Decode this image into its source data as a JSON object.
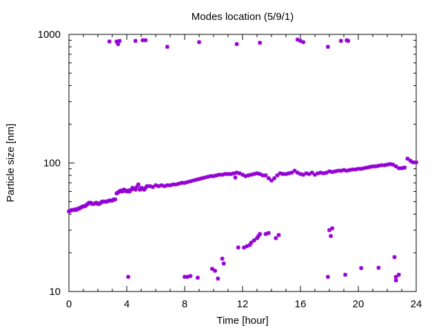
{
  "chart_data": {
    "type": "scatter",
    "title": "Modes location (5/9/1)",
    "xlabel": "Time [hour]",
    "ylabel": "Particle size [nm]",
    "xlim": [
      0,
      24
    ],
    "ylim": [
      10,
      1000
    ],
    "y_scale": "log",
    "grid": false,
    "legend": "none",
    "x_ticks": [
      0,
      4,
      8,
      12,
      16,
      20,
      24
    ],
    "x_tick_labels": [
      "0",
      "4",
      "8",
      "12",
      "16",
      "20",
      "24"
    ],
    "y_ticks": [
      10,
      100,
      1000
    ],
    "y_tick_labels": [
      "10",
      "100",
      "1000"
    ],
    "marker_color": "#9400d3",
    "series": [
      {
        "values": [
          [
            0.0,
            42
          ],
          [
            0.1,
            42.5
          ],
          [
            0.2,
            43
          ],
          [
            0.3,
            43
          ],
          [
            0.4,
            43.5
          ],
          [
            0.5,
            43
          ],
          [
            0.6,
            44
          ],
          [
            0.7,
            44
          ],
          [
            0.8,
            45
          ],
          [
            0.9,
            45.5
          ],
          [
            1.0,
            46
          ],
          [
            1.1,
            46
          ],
          [
            1.2,
            47
          ],
          [
            1.3,
            48
          ],
          [
            1.4,
            49
          ],
          [
            1.5,
            49
          ],
          [
            1.6,
            48
          ],
          [
            1.7,
            48
          ],
          [
            1.8,
            48.5
          ],
          [
            1.9,
            49
          ],
          [
            2.0,
            48
          ],
          [
            2.1,
            48
          ],
          [
            2.2,
            49
          ],
          [
            2.3,
            50
          ],
          [
            2.4,
            50
          ],
          [
            2.5,
            50
          ],
          [
            2.6,
            50
          ],
          [
            2.7,
            50.5
          ],
          [
            2.8,
            51
          ],
          [
            2.9,
            51
          ],
          [
            3.0,
            51
          ],
          [
            3.1,
            52
          ],
          [
            3.2,
            52
          ],
          [
            3.3,
            58
          ],
          [
            3.4,
            59
          ],
          [
            3.5,
            60
          ],
          [
            3.6,
            61
          ],
          [
            3.7,
            60
          ],
          [
            3.8,
            62
          ],
          [
            3.9,
            61
          ],
          [
            4.0,
            60
          ],
          [
            4.1,
            61
          ],
          [
            4.2,
            60
          ],
          [
            4.3,
            62
          ],
          [
            4.4,
            64
          ],
          [
            4.5,
            63
          ],
          [
            4.6,
            62
          ],
          [
            4.7,
            65
          ],
          [
            4.8,
            68
          ],
          [
            4.9,
            62
          ],
          [
            5.0,
            64
          ],
          [
            5.1,
            63
          ],
          [
            5.2,
            62
          ],
          [
            5.3,
            64
          ],
          [
            5.4,
            66
          ],
          [
            5.6,
            66
          ],
          [
            5.8,
            65
          ],
          [
            6.0,
            67
          ],
          [
            6.2,
            66
          ],
          [
            6.4,
            67
          ],
          [
            6.6,
            66
          ],
          [
            6.8,
            67
          ],
          [
            7.0,
            67
          ],
          [
            7.2,
            68
          ],
          [
            7.4,
            68
          ],
          [
            7.6,
            69
          ],
          [
            7.8,
            70
          ],
          [
            8.0,
            70
          ],
          [
            8.2,
            71
          ],
          [
            8.4,
            72
          ],
          [
            8.6,
            73
          ],
          [
            8.8,
            74
          ],
          [
            9.0,
            75
          ],
          [
            9.2,
            76
          ],
          [
            9.4,
            77
          ],
          [
            9.6,
            78
          ],
          [
            9.8,
            79
          ],
          [
            10.0,
            79
          ],
          [
            10.2,
            80
          ],
          [
            10.4,
            81
          ],
          [
            10.6,
            81
          ],
          [
            10.8,
            82
          ],
          [
            11.0,
            82
          ],
          [
            11.2,
            82
          ],
          [
            11.4,
            83
          ],
          [
            11.5,
            77
          ],
          [
            11.6,
            84
          ],
          [
            11.8,
            83
          ],
          [
            12.0,
            81
          ],
          [
            12.2,
            79
          ],
          [
            12.4,
            80
          ],
          [
            12.6,
            81
          ],
          [
            12.8,
            82
          ],
          [
            13.0,
            83
          ],
          [
            13.2,
            82
          ],
          [
            13.4,
            80
          ],
          [
            13.6,
            80
          ],
          [
            13.8,
            76
          ],
          [
            14.0,
            73
          ],
          [
            14.2,
            76
          ],
          [
            14.4,
            80
          ],
          [
            14.6,
            83
          ],
          [
            14.8,
            82
          ],
          [
            15.0,
            82
          ],
          [
            15.2,
            83
          ],
          [
            15.4,
            84
          ],
          [
            15.6,
            87
          ],
          [
            15.8,
            84
          ],
          [
            16.0,
            82
          ],
          [
            16.2,
            81
          ],
          [
            16.4,
            83
          ],
          [
            16.6,
            82
          ],
          [
            16.8,
            84
          ],
          [
            17.0,
            81
          ],
          [
            17.2,
            83
          ],
          [
            17.4,
            84
          ],
          [
            17.6,
            83
          ],
          [
            17.8,
            84
          ],
          [
            18.0,
            86
          ],
          [
            18.2,
            85
          ],
          [
            18.4,
            86
          ],
          [
            18.6,
            87
          ],
          [
            18.8,
            87
          ],
          [
            19.0,
            88
          ],
          [
            19.2,
            87
          ],
          [
            19.4,
            88
          ],
          [
            19.6,
            89
          ],
          [
            19.8,
            89
          ],
          [
            20.0,
            90
          ],
          [
            20.2,
            90
          ],
          [
            20.4,
            91
          ],
          [
            20.6,
            92
          ],
          [
            20.8,
            93
          ],
          [
            21.0,
            94
          ],
          [
            21.2,
            94
          ],
          [
            21.4,
            95
          ],
          [
            21.6,
            96
          ],
          [
            21.8,
            96
          ],
          [
            22.0,
            97
          ],
          [
            22.2,
            98
          ],
          [
            22.4,
            97
          ],
          [
            22.6,
            94
          ],
          [
            22.8,
            91
          ],
          [
            23.0,
            91
          ],
          [
            23.2,
            92
          ],
          [
            23.4,
            108
          ],
          [
            23.6,
            104
          ],
          [
            23.8,
            101
          ],
          [
            24.0,
            101
          ],
          [
            2.8,
            880
          ],
          [
            3.3,
            880
          ],
          [
            3.4,
            840
          ],
          [
            3.5,
            890
          ],
          [
            4.6,
            890
          ],
          [
            5.1,
            900
          ],
          [
            5.3,
            900
          ],
          [
            6.8,
            800
          ],
          [
            9.0,
            870
          ],
          [
            11.6,
            840
          ],
          [
            13.2,
            860
          ],
          [
            15.8,
            910
          ],
          [
            16.0,
            890
          ],
          [
            16.2,
            870
          ],
          [
            17.9,
            800
          ],
          [
            18.8,
            890
          ],
          [
            19.2,
            900
          ],
          [
            19.3,
            890
          ],
          [
            4.1,
            13
          ],
          [
            8.0,
            13
          ],
          [
            8.2,
            13
          ],
          [
            8.4,
            13.2
          ],
          [
            8.9,
            12.8
          ],
          [
            9.9,
            15
          ],
          [
            10.1,
            14.5
          ],
          [
            10.3,
            12.6
          ],
          [
            10.6,
            18
          ],
          [
            10.7,
            16.5
          ],
          [
            11.7,
            22
          ],
          [
            12.1,
            22
          ],
          [
            12.3,
            22.5
          ],
          [
            12.5,
            23
          ],
          [
            12.6,
            24
          ],
          [
            12.8,
            25
          ],
          [
            13.0,
            26
          ],
          [
            13.1,
            27
          ],
          [
            13.2,
            28
          ],
          [
            13.6,
            28
          ],
          [
            13.8,
            28.5
          ],
          [
            14.3,
            26
          ],
          [
            14.5,
            27.5
          ],
          [
            18.0,
            30
          ],
          [
            18.2,
            31
          ],
          [
            18.1,
            27
          ],
          [
            17.9,
            13
          ],
          [
            19.1,
            13.5
          ],
          [
            20.2,
            15.2
          ],
          [
            21.4,
            15.3
          ],
          [
            22.5,
            18.5
          ],
          [
            22.6,
            12.2
          ],
          [
            22.6,
            13
          ],
          [
            22.8,
            13.5
          ]
        ]
      }
    ]
  }
}
